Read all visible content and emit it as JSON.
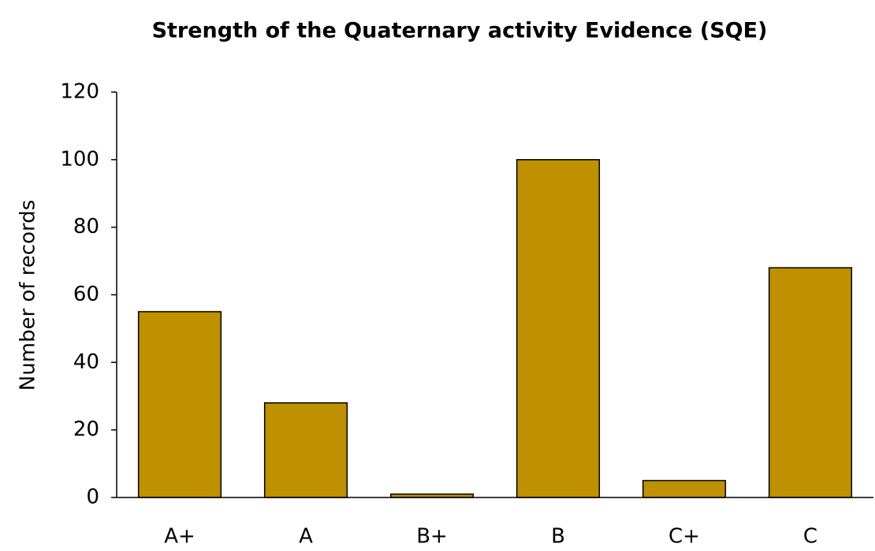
{
  "chart_data": {
    "type": "bar",
    "title": "Strength of the Quaternary activity Evidence (SQE)",
    "y_label": "Number of records",
    "categories": [
      "A+",
      "A",
      "B+",
      "B",
      "C+",
      "C"
    ],
    "values": [
      55,
      28,
      1,
      100,
      5,
      68
    ],
    "color": "#bf9000",
    "ylim": [
      0,
      120
    ],
    "yticks": [
      0,
      20,
      40,
      60,
      80,
      100,
      120
    ],
    "grid": false
  }
}
